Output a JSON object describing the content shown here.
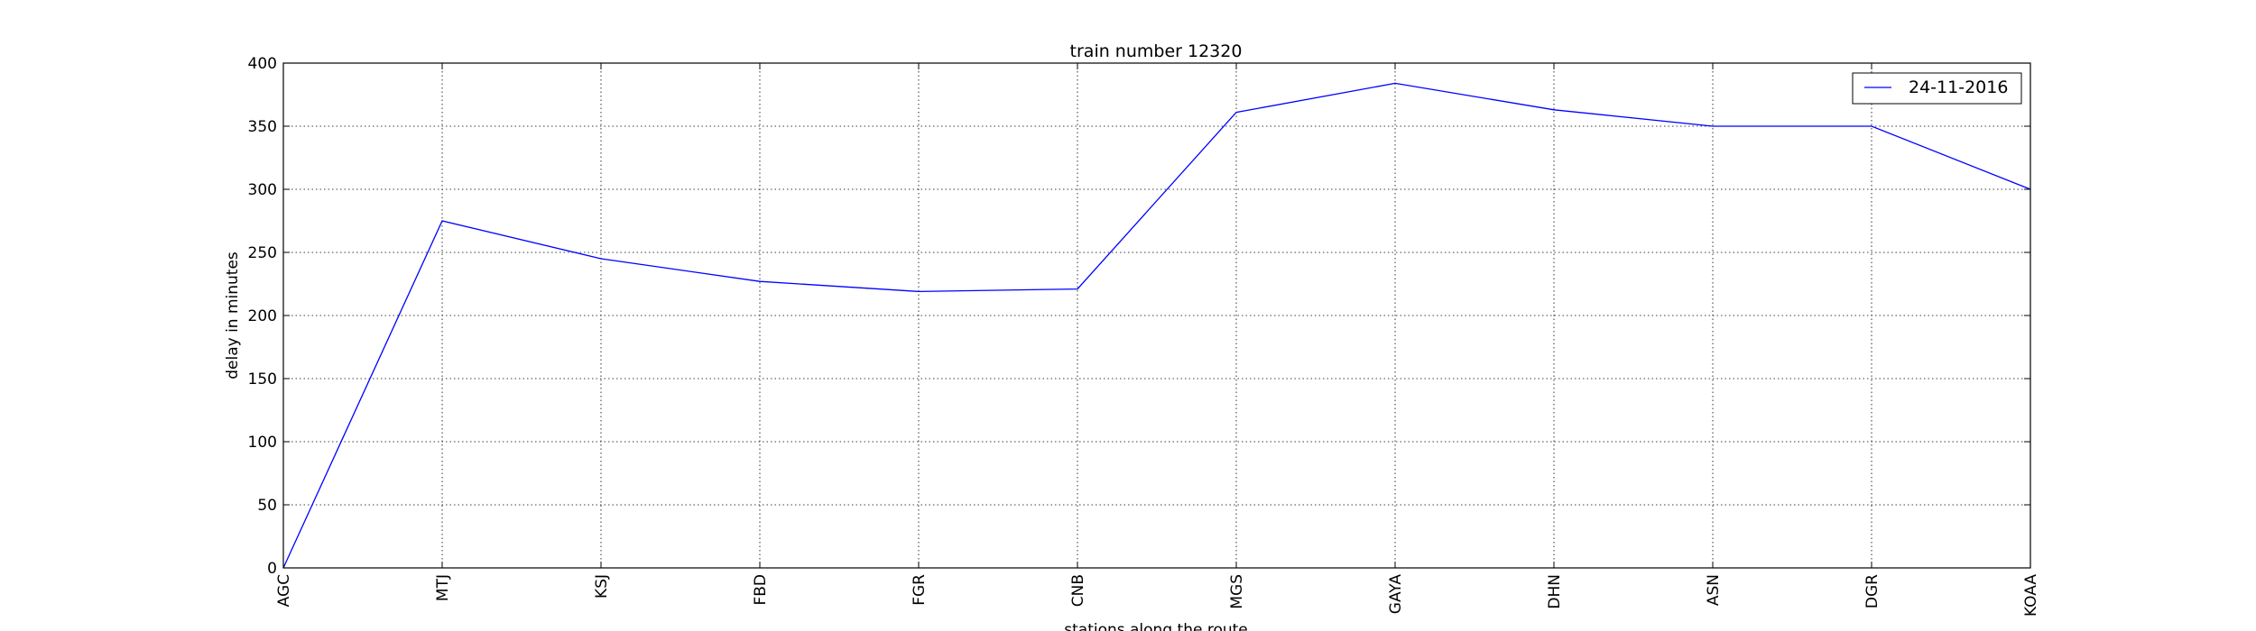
{
  "chart_data": {
    "type": "line",
    "title": "train number 12320",
    "xlabel": "stations along the route",
    "ylabel": "delay in minutes",
    "categories": [
      "AGC",
      "MTJ",
      "KSJ",
      "FBD",
      "FGR",
      "CNB",
      "MGS",
      "GAYA",
      "DHN",
      "ASN",
      "DGR",
      "KOAA"
    ],
    "series": [
      {
        "name": "24-11-2016",
        "color": "#0000ff",
        "values": [
          0,
          275,
          245,
          227,
          219,
          221,
          361,
          384,
          363,
          350,
          350,
          300
        ]
      }
    ],
    "ylim": [
      0,
      400
    ],
    "yticks": [
      0,
      50,
      100,
      150,
      200,
      250,
      300,
      350,
      400
    ],
    "grid": true,
    "legend_position": "top-right"
  }
}
